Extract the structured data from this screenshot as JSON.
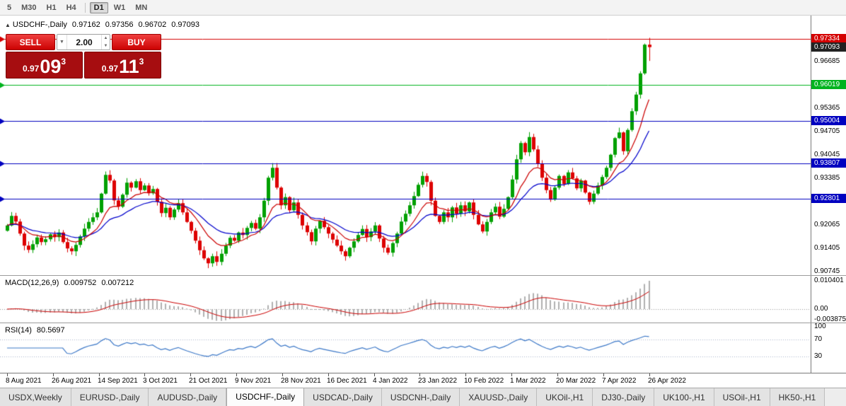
{
  "toolbar": {
    "periods": [
      {
        "label": "5",
        "active": false
      },
      {
        "label": "M30",
        "active": false
      },
      {
        "label": "H1",
        "active": false
      },
      {
        "label": "H4",
        "active": false
      },
      {
        "label": "D1",
        "active": true
      },
      {
        "label": "W1",
        "active": false
      },
      {
        "label": "MN",
        "active": false
      }
    ],
    "divider_after_index": 3
  },
  "trade_panel": {
    "sell_label": "SELL",
    "buy_label": "BUY",
    "volume": "2.00",
    "sell_price": {
      "prefix": "0.97",
      "big": "09",
      "sup": "3"
    },
    "buy_price": {
      "prefix": "0.97",
      "big": "11",
      "sup": "3"
    },
    "icons": {
      "dropdown": "▼",
      "step_up": "▲",
      "step_down": "▼"
    }
  },
  "chart": {
    "header": {
      "marker": "▲",
      "symbol": "USDCHF-,Daily",
      "open": "0.97162",
      "high": "0.97356",
      "low": "0.96702",
      "close": "0.97093"
    },
    "price_axis": {
      "plain": [
        {
          "text": "0.96685",
          "value": 0.96685
        },
        {
          "text": "0.95365",
          "value": 0.95365
        },
        {
          "text": "0.94705",
          "value": 0.94705
        },
        {
          "text": "0.94045",
          "value": 0.94045
        },
        {
          "text": "0.93385",
          "value": 0.93385
        },
        {
          "text": "0.92065",
          "value": 0.92065
        },
        {
          "text": "0.91405",
          "value": 0.91405
        },
        {
          "text": "0.90745",
          "value": 0.90745
        }
      ],
      "tagged": [
        {
          "text": "0.97334",
          "value": 0.97334,
          "color": "#d40000"
        },
        {
          "text": "0.97093",
          "value": 0.97093,
          "color": "#222222"
        },
        {
          "text": "0.96019",
          "value": 0.96019,
          "color": "#00b31e"
        },
        {
          "text": "0.95004",
          "value": 0.95004,
          "color": "#0000c0"
        },
        {
          "text": "0.93807",
          "value": 0.93807,
          "color": "#0000c0"
        },
        {
          "text": "0.92801",
          "value": 0.92801,
          "color": "#0000c0"
        }
      ]
    },
    "hlines": [
      {
        "value": 0.97334,
        "color": "#d40000"
      },
      {
        "value": 0.96019,
        "color": "#00b31e"
      },
      {
        "value": 0.95004,
        "color": "#0000c0"
      },
      {
        "value": 0.93807,
        "color": "#0000c0"
      },
      {
        "value": 0.92801,
        "color": "#0000c0"
      }
    ],
    "dates": [
      "8 Aug 2021",
      "26 Aug 2021",
      "14 Sep 2021",
      "3 Oct 2021",
      "21 Oct 2021",
      "9 Nov 2021",
      "28 Nov 2021",
      "16 Dec 2021",
      "4 Jan 2022",
      "23 Jan 2022",
      "10 Feb 2022",
      "1 Mar 2022",
      "20 Mar 2022",
      "7 Apr 2022",
      "26 Apr 2022"
    ]
  },
  "macd": {
    "title": "MACD(12,26,9)",
    "main_value": "0.009752",
    "signal_value": "0.007212",
    "axis": [
      {
        "text": "0.010401",
        "value": 0.010401
      },
      {
        "text": "0.00",
        "value": 0
      },
      {
        "text": "-0.003875",
        "value": -0.003875
      }
    ]
  },
  "rsi": {
    "title": "RSI(14)",
    "value": "80.5697",
    "axis": [
      {
        "text": "100",
        "value": 100
      },
      {
        "text": "70",
        "value": 70
      },
      {
        "text": "30",
        "value": 30
      }
    ],
    "levels": [
      70,
      30
    ]
  },
  "tabs": {
    "items": [
      "USDX,Weekly",
      "EURUSD-,Daily",
      "AUDUSD-,Daily",
      "USDCHF-,Daily",
      "USDCAD-,Daily",
      "USDCNH-,Daily",
      "XAUUSD-,Daily",
      "UKOil-,H1",
      "DJ30-,Daily",
      "UK100-,H1",
      "USOil-,H1",
      "HK50-,H1"
    ],
    "active_index": 3
  },
  "chart_data": {
    "type": "candlestick",
    "symbol": "USDCHF",
    "timeframe": "Daily",
    "ylim": [
      0.90645,
      0.97985
    ],
    "closes": [
      0.9205,
      0.9232,
      0.9216,
      0.9182,
      0.9148,
      0.9136,
      0.9152,
      0.9171,
      0.9158,
      0.9166,
      0.918,
      0.9172,
      0.9185,
      0.9158,
      0.914,
      0.9132,
      0.915,
      0.9174,
      0.9196,
      0.9215,
      0.9228,
      0.9242,
      0.9295,
      0.9348,
      0.9332,
      0.9276,
      0.9258,
      0.9292,
      0.9326,
      0.9312,
      0.933,
      0.9305,
      0.9318,
      0.9296,
      0.9308,
      0.9272,
      0.924,
      0.9255,
      0.9228,
      0.925,
      0.9268,
      0.9242,
      0.9215,
      0.919,
      0.9162,
      0.9135,
      0.9112,
      0.9098,
      0.9118,
      0.9102,
      0.9125,
      0.9148,
      0.917,
      0.9162,
      0.9185,
      0.9178,
      0.9198,
      0.9212,
      0.9196,
      0.9228,
      0.9275,
      0.934,
      0.9368,
      0.9312,
      0.9262,
      0.9285,
      0.9248,
      0.927,
      0.9235,
      0.9205,
      0.9186,
      0.916,
      0.9196,
      0.9218,
      0.92,
      0.9182,
      0.9165,
      0.9148,
      0.9132,
      0.9118,
      0.9142,
      0.916,
      0.9178,
      0.9195,
      0.9172,
      0.9188,
      0.9205,
      0.9168,
      0.9142,
      0.9128,
      0.9155,
      0.9182,
      0.9216,
      0.9238,
      0.9262,
      0.9288,
      0.932,
      0.9345,
      0.9328,
      0.9275,
      0.9232,
      0.9215,
      0.9242,
      0.9228,
      0.9256,
      0.9238,
      0.9262,
      0.9245,
      0.927,
      0.9235,
      0.9208,
      0.9188,
      0.9215,
      0.9242,
      0.9258,
      0.923,
      0.9252,
      0.9285,
      0.9335,
      0.9392,
      0.9438,
      0.9412,
      0.9455,
      0.942,
      0.938,
      0.934,
      0.9305,
      0.9278,
      0.9312,
      0.9345,
      0.9322,
      0.9355,
      0.9338,
      0.931,
      0.9332,
      0.9298,
      0.9272,
      0.9295,
      0.9318,
      0.9342,
      0.9368,
      0.9405,
      0.9452,
      0.9468,
      0.9415,
      0.9475,
      0.9528,
      0.9575,
      0.9635,
      0.97162,
      0.97093
    ],
    "last_candle": {
      "open": 0.97162,
      "high": 0.97356,
      "low": 0.96702,
      "close": 0.97093
    },
    "indicators": {
      "ma_fast_period": 10,
      "ma_slow_period": 21,
      "macd": [
        12,
        26,
        9
      ],
      "rsi_period": 14
    },
    "style": {
      "up": "#00a000",
      "down": "#dd0000",
      "ma_fast": "#cc0000",
      "ma_slow": "#0000cc",
      "macd_bar": "#b0b0b0",
      "macd_signal": "#cc0000",
      "rsi_line": "#3c78c8",
      "rsi_level": "#aab4cc",
      "zero_line": "#999999"
    }
  }
}
